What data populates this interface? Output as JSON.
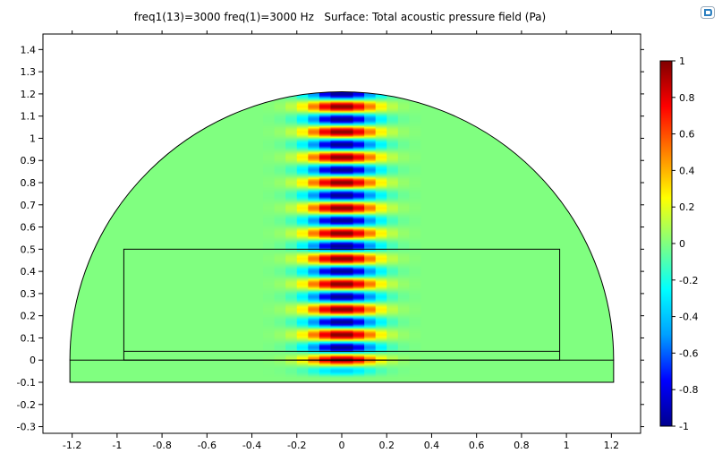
{
  "title": "freq1(13)=3000 freq(1)=3000 Hz   Surface: Total acoustic pressure field (Pa)",
  "app_icon": "comsol-logo-icon",
  "chart_data": {
    "type": "heatmap",
    "title": "freq1(13)=3000 freq(1)=3000 Hz   Surface: Total acoustic pressure field (Pa)",
    "quantity": "Total acoustic pressure field",
    "unit": "Pa",
    "xlabel": "",
    "ylabel": "",
    "xlim": [
      -1.33,
      1.33
    ],
    "ylim": [
      -0.33,
      1.47
    ],
    "x_ticks": [
      -1.2,
      -1,
      -0.8,
      -0.6,
      -0.4,
      -0.2,
      0,
      0.2,
      0.4,
      0.6,
      0.8,
      1,
      1.2
    ],
    "y_ticks": [
      -0.3,
      -0.2,
      -0.1,
      0,
      0.1,
      0.2,
      0.3,
      0.4,
      0.5,
      0.6,
      0.7,
      0.8,
      0.9,
      1,
      1.1,
      1.2,
      1.3,
      1.4
    ],
    "x_tick_labels": [
      "-1.2",
      "-1",
      "-0.8",
      "-0.6",
      "-0.4",
      "-0.2",
      "0",
      "0.2",
      "0.4",
      "0.6",
      "0.8",
      "1",
      "1.2"
    ],
    "y_tick_labels": [
      "-0.3",
      "-0.2",
      "-0.1",
      "0",
      "0.1",
      "0.2",
      "0.3",
      "0.4",
      "0.5",
      "0.6",
      "0.7",
      "0.8",
      "0.9",
      "1",
      "1.1",
      "1.2",
      "1.3",
      "1.4"
    ],
    "domain": {
      "semicircle_radius": 1.21,
      "base_rect": {
        "x": [
          -1.21,
          1.21
        ],
        "y": [
          -0.1,
          0
        ]
      },
      "inner_rect": {
        "x": [
          -0.97,
          0.97
        ],
        "y": [
          0,
          0.5
        ]
      },
      "inner_line_y": 0.04
    },
    "field": {
      "frequency_hz": 3000,
      "wavelength": 0.1143,
      "beam_half_width": 0.28,
      "background_value": 0
    },
    "colorbar": {
      "range": [
        -1,
        1
      ],
      "ticks": [
        1,
        0.8,
        0.6,
        0.4,
        0.2,
        0,
        -0.2,
        -0.4,
        -0.6,
        -0.8,
        -1
      ],
      "labels": [
        "1",
        "0.8",
        "0.6",
        "0.4",
        "0.2",
        "0",
        "-0.2",
        "-0.4",
        "-0.6",
        "-0.8",
        "-1"
      ],
      "colormap": "rainbow",
      "colors": [
        "#00008f",
        "#0000ff",
        "#00a0ff",
        "#00ffff",
        "#80ff80",
        "#ffff00",
        "#ff8000",
        "#ff0000",
        "#800000"
      ]
    },
    "grid": false,
    "legend": "colorbar-right"
  }
}
